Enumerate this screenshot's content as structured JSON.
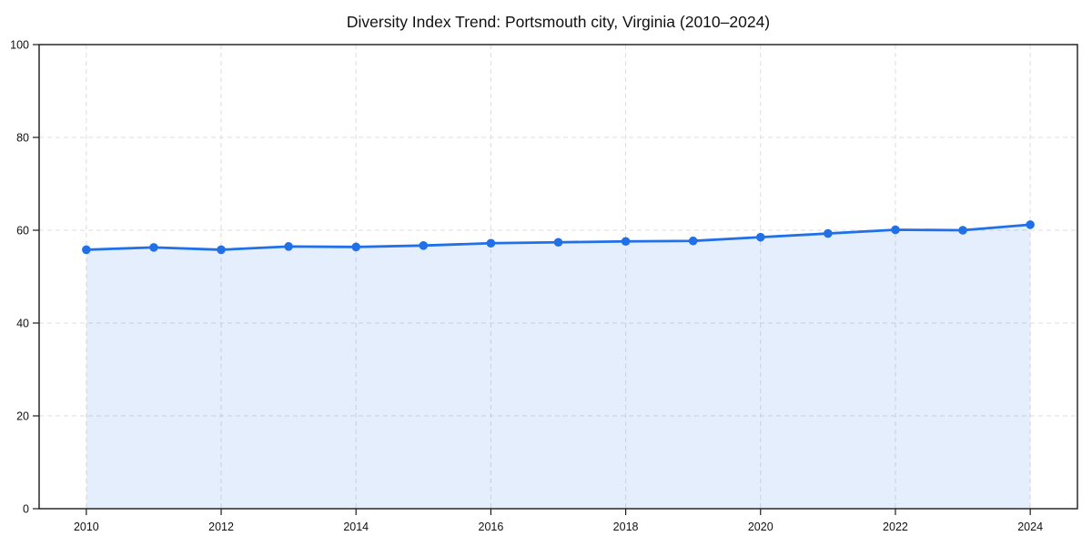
{
  "page": {
    "background": "#ffffff"
  },
  "chart_data": {
    "type": "line",
    "title": "Diversity Index Trend: Portsmouth city, Virginia (2010–2024)",
    "x": [
      2010,
      2011,
      2012,
      2013,
      2014,
      2015,
      2016,
      2017,
      2018,
      2019,
      2020,
      2021,
      2022,
      2023,
      2024
    ],
    "series": [
      {
        "name": "Diversity Index",
        "values": [
          55.8,
          56.3,
          55.8,
          56.5,
          56.4,
          56.7,
          57.2,
          57.4,
          57.6,
          57.7,
          58.5,
          59.3,
          60.1,
          60.0,
          61.2
        ]
      }
    ],
    "xlabel": "",
    "ylabel": "",
    "xlim": [
      2009.3,
      2024.7
    ],
    "ylim": [
      0,
      100
    ],
    "x_ticks": [
      2010,
      2012,
      2014,
      2016,
      2018,
      2020,
      2022,
      2024
    ],
    "y_ticks": [
      0,
      20,
      40,
      60,
      80,
      100
    ],
    "grid": true,
    "grid_style": "dashed",
    "legend_position": "none",
    "marker": "circle",
    "area_fill": true,
    "colors": {
      "line": "#2170e8",
      "marker": "#2170e8",
      "area": "rgba(33,112,232,0.12)",
      "grid": "#dcdcdc",
      "spine": "#1a1a1a",
      "tick_text": "#111111",
      "title_text": "#111111",
      "background": "#ffffff"
    }
  }
}
